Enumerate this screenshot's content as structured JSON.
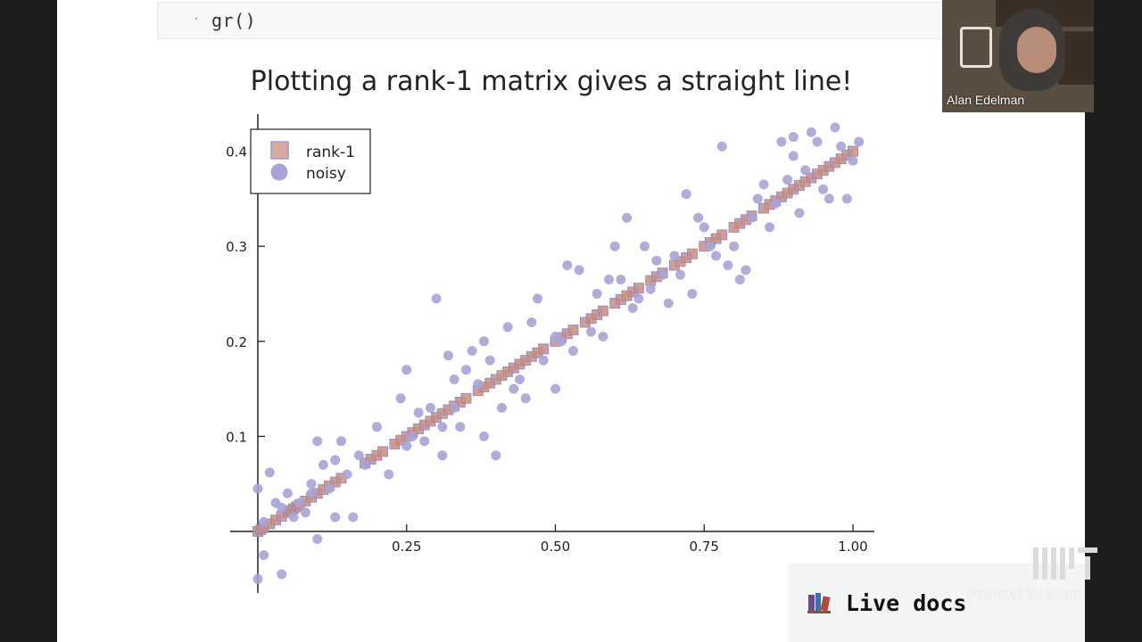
{
  "notebook": {
    "code": "gr()"
  },
  "video": {
    "participant_name": "Alan Edelman",
    "watermark": "Powered by Zoom"
  },
  "overlay": {
    "live_docs_label": "Live docs",
    "live_docs_icon": "books-icon",
    "logo": "MIT"
  },
  "colors": {
    "rank1": "#c98d7e",
    "noisy": "#a8a4d6",
    "axis": "#222222"
  },
  "chart_data": {
    "type": "scatter",
    "title": "Plotting a rank-1 matrix gives a straight line!",
    "xlabel": "",
    "ylabel": "",
    "xlim": [
      0,
      1.0
    ],
    "ylim": [
      -0.06,
      0.43
    ],
    "xticks": [
      0.25,
      0.5,
      0.75,
      1.0
    ],
    "xtick_labels": [
      "0.25",
      "0.50",
      "0.75",
      "1.00"
    ],
    "yticks": [
      0.1,
      0.2,
      0.3,
      0.4
    ],
    "ytick_labels": [
      "0.1",
      "0.2",
      "0.3",
      "0.4"
    ],
    "grid": false,
    "legend": {
      "position": "top-left",
      "entries": [
        "rank-1",
        "noisy"
      ]
    },
    "series": [
      {
        "name": "rank-1",
        "marker": "square",
        "x": [
          0.0,
          0.005,
          0.01,
          0.02,
          0.03,
          0.04,
          0.05,
          0.055,
          0.06,
          0.065,
          0.07,
          0.08,
          0.09,
          0.1,
          0.11,
          0.12,
          0.13,
          0.14,
          0.18,
          0.19,
          0.2,
          0.21,
          0.23,
          0.24,
          0.25,
          0.26,
          0.27,
          0.28,
          0.29,
          0.3,
          0.31,
          0.32,
          0.33,
          0.34,
          0.35,
          0.37,
          0.38,
          0.39,
          0.4,
          0.41,
          0.42,
          0.43,
          0.44,
          0.45,
          0.46,
          0.47,
          0.48,
          0.5,
          0.51,
          0.52,
          0.53,
          0.55,
          0.56,
          0.57,
          0.58,
          0.6,
          0.61,
          0.62,
          0.63,
          0.64,
          0.66,
          0.67,
          0.68,
          0.7,
          0.71,
          0.72,
          0.73,
          0.75,
          0.76,
          0.77,
          0.78,
          0.8,
          0.81,
          0.82,
          0.83,
          0.85,
          0.86,
          0.87,
          0.88,
          0.89,
          0.9,
          0.91,
          0.92,
          0.93,
          0.94,
          0.95,
          0.96,
          0.97,
          0.98,
          0.99,
          1.0
        ],
        "y": [
          0.0,
          0.002,
          0.004,
          0.008,
          0.012,
          0.016,
          0.02,
          0.022,
          0.024,
          0.026,
          0.028,
          0.032,
          0.036,
          0.04,
          0.044,
          0.048,
          0.052,
          0.056,
          0.072,
          0.076,
          0.08,
          0.084,
          0.092,
          0.096,
          0.1,
          0.104,
          0.108,
          0.112,
          0.116,
          0.12,
          0.124,
          0.128,
          0.132,
          0.136,
          0.14,
          0.148,
          0.152,
          0.156,
          0.16,
          0.164,
          0.168,
          0.172,
          0.176,
          0.18,
          0.184,
          0.188,
          0.192,
          0.2,
          0.204,
          0.208,
          0.212,
          0.22,
          0.224,
          0.228,
          0.232,
          0.24,
          0.244,
          0.248,
          0.252,
          0.256,
          0.264,
          0.268,
          0.272,
          0.28,
          0.284,
          0.288,
          0.292,
          0.3,
          0.304,
          0.308,
          0.312,
          0.32,
          0.324,
          0.328,
          0.332,
          0.34,
          0.344,
          0.348,
          0.352,
          0.356,
          0.36,
          0.364,
          0.368,
          0.372,
          0.376,
          0.38,
          0.384,
          0.388,
          0.392,
          0.396,
          0.4
        ]
      },
      {
        "name": "noisy",
        "marker": "circle",
        "x": [
          0.0,
          0.0,
          0.01,
          0.01,
          0.02,
          0.03,
          0.04,
          0.04,
          0.05,
          0.06,
          0.07,
          0.08,
          0.09,
          0.09,
          0.1,
          0.1,
          0.11,
          0.12,
          0.13,
          0.13,
          0.14,
          0.15,
          0.16,
          0.17,
          0.18,
          0.2,
          0.22,
          0.24,
          0.25,
          0.25,
          0.26,
          0.27,
          0.28,
          0.29,
          0.3,
          0.31,
          0.31,
          0.32,
          0.33,
          0.33,
          0.34,
          0.35,
          0.36,
          0.37,
          0.38,
          0.38,
          0.39,
          0.4,
          0.41,
          0.42,
          0.43,
          0.44,
          0.45,
          0.46,
          0.47,
          0.48,
          0.5,
          0.5,
          0.51,
          0.52,
          0.53,
          0.54,
          0.56,
          0.57,
          0.58,
          0.59,
          0.6,
          0.61,
          0.62,
          0.63,
          0.64,
          0.65,
          0.66,
          0.67,
          0.68,
          0.69,
          0.7,
          0.71,
          0.72,
          0.73,
          0.74,
          0.75,
          0.76,
          0.77,
          0.78,
          0.79,
          0.8,
          0.81,
          0.82,
          0.83,
          0.84,
          0.85,
          0.86,
          0.87,
          0.88,
          0.89,
          0.9,
          0.9,
          0.91,
          0.92,
          0.93,
          0.94,
          0.95,
          0.96,
          0.97,
          0.98,
          0.99,
          1.0,
          1.01
        ],
        "y": [
          -0.05,
          0.045,
          -0.025,
          0.01,
          0.062,
          0.03,
          0.025,
          -0.045,
          0.04,
          0.015,
          0.03,
          0.02,
          0.05,
          0.04,
          0.095,
          -0.008,
          0.07,
          0.045,
          0.015,
          0.075,
          0.095,
          0.06,
          0.015,
          0.08,
          0.07,
          0.11,
          0.06,
          0.14,
          0.17,
          0.09,
          0.1,
          0.125,
          0.095,
          0.13,
          0.245,
          0.08,
          0.11,
          0.185,
          0.16,
          0.13,
          0.11,
          0.17,
          0.19,
          0.155,
          0.2,
          0.1,
          0.18,
          0.08,
          0.13,
          0.215,
          0.15,
          0.16,
          0.14,
          0.22,
          0.245,
          0.18,
          0.205,
          0.15,
          0.2,
          0.28,
          0.19,
          0.275,
          0.21,
          0.25,
          0.205,
          0.265,
          0.3,
          0.265,
          0.33,
          0.235,
          0.245,
          0.3,
          0.255,
          0.285,
          0.27,
          0.24,
          0.29,
          0.27,
          0.355,
          0.25,
          0.33,
          0.32,
          0.3,
          0.29,
          0.405,
          0.28,
          0.3,
          0.265,
          0.275,
          0.33,
          0.35,
          0.365,
          0.32,
          0.345,
          0.41,
          0.37,
          0.415,
          0.395,
          0.335,
          0.38,
          0.42,
          0.41,
          0.36,
          0.35,
          0.425,
          0.405,
          0.35,
          0.39,
          0.41
        ]
      }
    ]
  }
}
